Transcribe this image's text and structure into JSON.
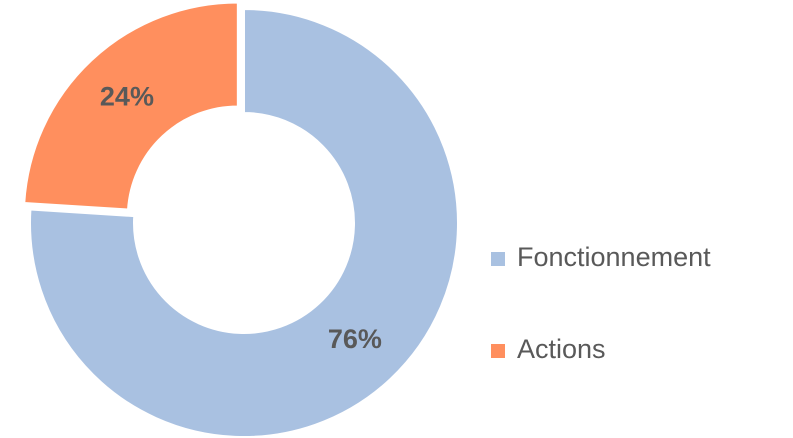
{
  "chart_data": {
    "type": "donut",
    "categories": [
      "Fonctionnement",
      "Actions"
    ],
    "values": [
      76,
      24
    ],
    "value_labels": [
      "76%",
      "24%"
    ],
    "colors": [
      "#a9c1e1",
      "#ff8f5e"
    ],
    "legend": "right"
  }
}
